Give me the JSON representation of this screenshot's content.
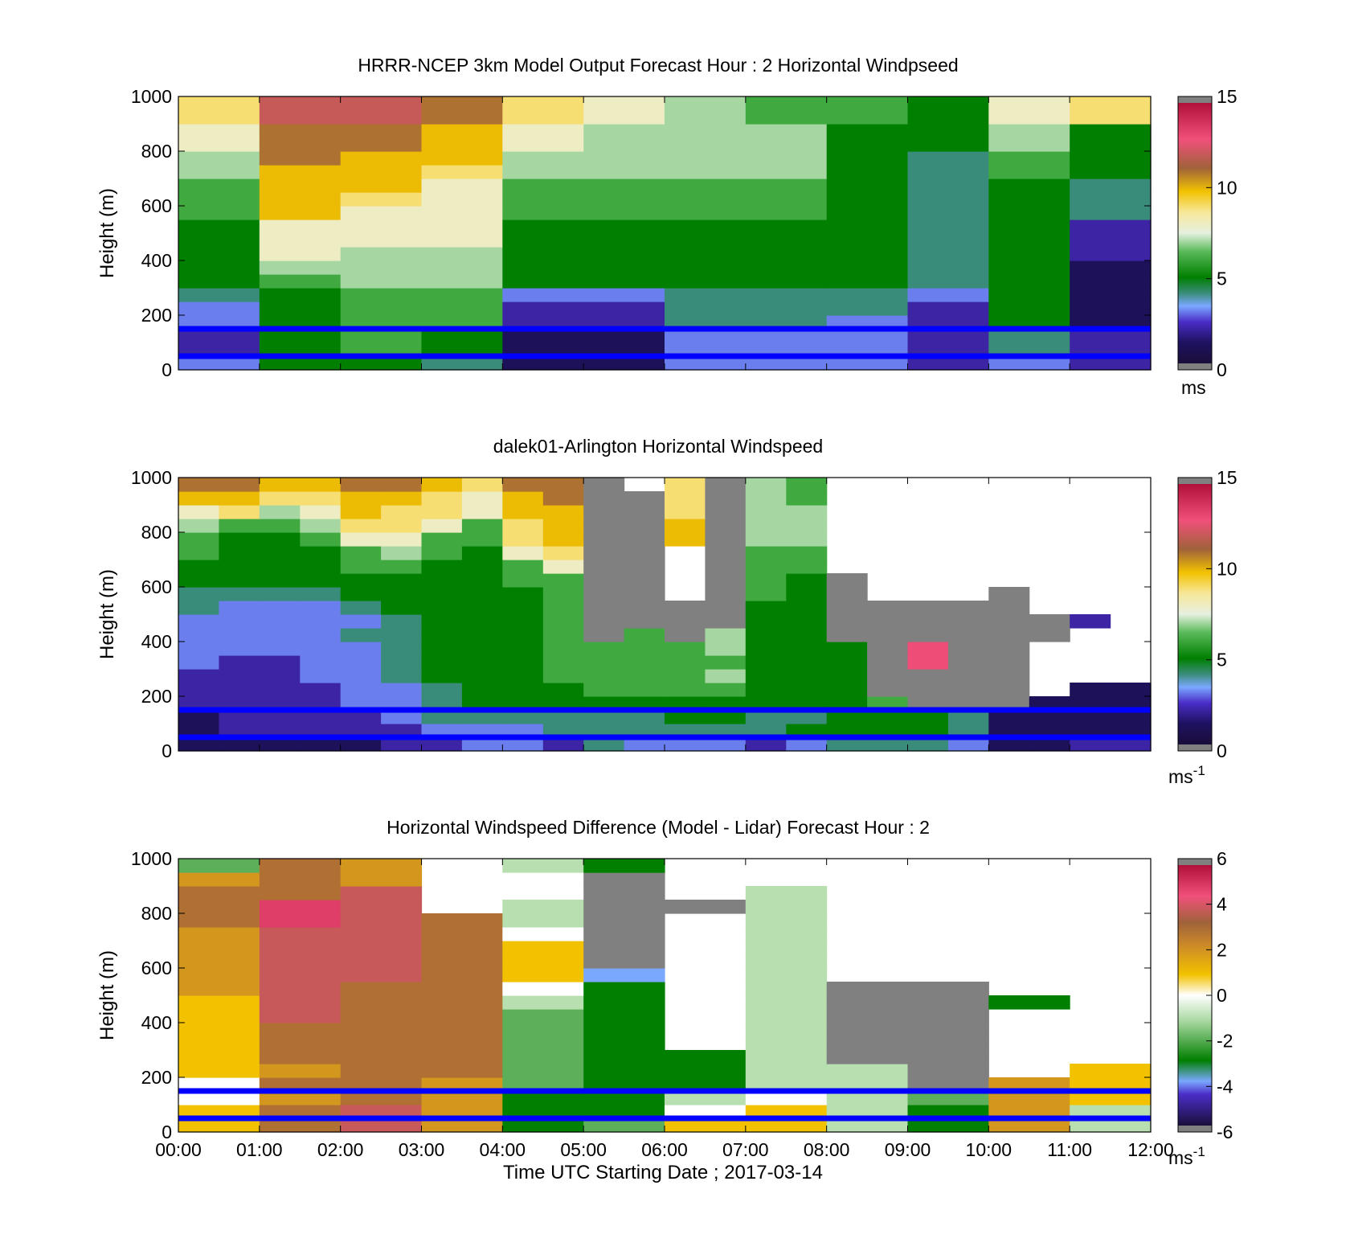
{
  "figure": {
    "xlabel": "Time UTC  Starting Date ; 2017-03-14",
    "x_ticks": [
      "00:00",
      "01:00",
      "02:00",
      "03:00",
      "04:00",
      "05:00",
      "06:00",
      "07:00",
      "08:00",
      "09:00",
      "10:00",
      "11:00",
      "12:00"
    ],
    "y_ticks": [
      "0",
      "200",
      "400",
      "600",
      "800",
      "1000"
    ],
    "ylabel": "Height (m)",
    "reference_lines_m": [
      50,
      150
    ],
    "reference_line_color": "#0000ff"
  },
  "chart_data": [
    {
      "type": "heatmap",
      "title": "HRRR-NCEP 3km Model Output   Forecast Hour : 2 Horizontal Windpseed",
      "xlabel": "",
      "ylabel": "Height (m)",
      "xlim": [
        0,
        12
      ],
      "ylim": [
        0,
        1000
      ],
      "colorbar": {
        "min": 0,
        "max": 15,
        "ticks": [
          "0",
          "5",
          "10",
          "15"
        ],
        "unit": "ms"
      },
      "x": [
        0,
        1,
        2,
        3,
        4,
        5,
        6,
        7,
        8,
        9,
        10,
        11
      ],
      "y": [
        25,
        75,
        125,
        175,
        225,
        275,
        325,
        375,
        425,
        475,
        525,
        575,
        625,
        675,
        725,
        775,
        825,
        875,
        925,
        975
      ],
      "values": [
        [
          3,
          5,
          5,
          4,
          1,
          1,
          3,
          3,
          3,
          2,
          3,
          2
        ],
        [
          2,
          5,
          6,
          5,
          1,
          1,
          3,
          3,
          3,
          2,
          4,
          2
        ],
        [
          2,
          5,
          6,
          5,
          1,
          1,
          3,
          3,
          3,
          2,
          4,
          2
        ],
        [
          3,
          5,
          6,
          6,
          2,
          2,
          4,
          4,
          3,
          2,
          5,
          1
        ],
        [
          3,
          5,
          6,
          6,
          2,
          2,
          4,
          4,
          4,
          2,
          5,
          1
        ],
        [
          4,
          5,
          6,
          6,
          3,
          3,
          4,
          4,
          4,
          3,
          5,
          1
        ],
        [
          5,
          6,
          7,
          7,
          5,
          5,
          5,
          5,
          5,
          4,
          5,
          1
        ],
        [
          5,
          7,
          7,
          7,
          5,
          5,
          5,
          5,
          5,
          4,
          5,
          1
        ],
        [
          5,
          8,
          7,
          7,
          5,
          5,
          5,
          5,
          5,
          4,
          5,
          2
        ],
        [
          5,
          8,
          8,
          8,
          5,
          5,
          5,
          5,
          5,
          4,
          5,
          2
        ],
        [
          5,
          8,
          8,
          8,
          5,
          5,
          5,
          5,
          5,
          4,
          5,
          2
        ],
        [
          6,
          10,
          8,
          8,
          6,
          6,
          6,
          6,
          5,
          4,
          5,
          4
        ],
        [
          6,
          10,
          9,
          8,
          6,
          6,
          6,
          6,
          5,
          4,
          5,
          4
        ],
        [
          6,
          10,
          10,
          8,
          6,
          6,
          6,
          6,
          5,
          4,
          5,
          4
        ],
        [
          7,
          10,
          10,
          9,
          7,
          7,
          7,
          7,
          5,
          4,
          6,
          5
        ],
        [
          7,
          11,
          10,
          10,
          7,
          7,
          7,
          7,
          5,
          4,
          6,
          5
        ],
        [
          8,
          11,
          11,
          10,
          8,
          7,
          7,
          7,
          5,
          5,
          7,
          5
        ],
        [
          8,
          11,
          11,
          10,
          8,
          7,
          7,
          7,
          5,
          5,
          7,
          5
        ],
        [
          9,
          12,
          12,
          11,
          9,
          8,
          7,
          6,
          6,
          5,
          8,
          9
        ],
        [
          9,
          12,
          12,
          11,
          9,
          8,
          7,
          6,
          6,
          5,
          8,
          9
        ]
      ]
    },
    {
      "type": "heatmap",
      "title": "dalek01-Arlington  Horizontal Windspeed",
      "xlabel": "",
      "ylabel": "Height (m)",
      "xlim": [
        0,
        12
      ],
      "ylim": [
        0,
        1000
      ],
      "colorbar": {
        "min": 0,
        "max": 15,
        "ticks": [
          "0",
          "5",
          "10",
          "15"
        ],
        "unit": "ms-1"
      },
      "x": [
        0.25,
        0.75,
        1.25,
        1.75,
        2.25,
        2.75,
        3.25,
        3.75,
        4.25,
        4.75,
        5.25,
        5.75,
        6.25,
        6.75,
        7.25,
        7.75,
        8.25,
        8.75,
        9.25,
        9.75,
        10.25,
        10.75,
        11.25,
        11.75
      ],
      "y": [
        25,
        75,
        125,
        175,
        225,
        275,
        325,
        375,
        425,
        475,
        525,
        575,
        625,
        675,
        725,
        775,
        825,
        875,
        925,
        975
      ],
      "values": [
        [
          1,
          1,
          1,
          1,
          1,
          2,
          2,
          3,
          3,
          2,
          4,
          3,
          3,
          3,
          2,
          3,
          4,
          4,
          4,
          3,
          1,
          1,
          2,
          2
        ],
        [
          1,
          2,
          2,
          2,
          2,
          2,
          3,
          3,
          3,
          4,
          4,
          4,
          4,
          4,
          4,
          5,
          5,
          5,
          5,
          4,
          1,
          1,
          1,
          1
        ],
        [
          1,
          2,
          2,
          2,
          2,
          3,
          4,
          4,
          4,
          4,
          4,
          4,
          5,
          5,
          4,
          4,
          5,
          5,
          5,
          4,
          1,
          1,
          1,
          1
        ],
        [
          2,
          2,
          2,
          2,
          3,
          3,
          4,
          5,
          5,
          5,
          5,
          5,
          5,
          5,
          5,
          5,
          5,
          6,
          -1,
          -1,
          -1,
          1,
          1,
          1
        ],
        [
          2,
          2,
          2,
          2,
          3,
          3,
          4,
          5,
          5,
          5,
          6,
          6,
          6,
          6,
          5,
          5,
          5,
          -1,
          -1,
          -1,
          -1,
          null,
          1,
          1
        ],
        [
          2,
          2,
          2,
          3,
          3,
          4,
          5,
          5,
          5,
          6,
          6,
          6,
          6,
          7,
          5,
          5,
          5,
          -1,
          -1,
          -1,
          -1,
          null,
          null,
          null
        ],
        [
          3,
          2,
          2,
          3,
          3,
          4,
          5,
          5,
          5,
          6,
          6,
          6,
          6,
          6,
          5,
          5,
          5,
          -1,
          13,
          -1,
          -1,
          null,
          null,
          null
        ],
        [
          3,
          3,
          3,
          3,
          3,
          4,
          5,
          5,
          5,
          6,
          6,
          6,
          6,
          7,
          5,
          5,
          5,
          -1,
          13,
          -1,
          -1,
          null,
          null,
          null
        ],
        [
          3,
          3,
          3,
          3,
          4,
          4,
          5,
          5,
          5,
          6,
          -1,
          6,
          -1,
          7,
          5,
          5,
          -1,
          -1,
          -1,
          -1,
          -1,
          -1,
          null,
          null
        ],
        [
          3,
          3,
          3,
          3,
          3,
          4,
          5,
          5,
          5,
          6,
          -1,
          -1,
          -1,
          -1,
          5,
          5,
          -1,
          -1,
          -1,
          -1,
          -1,
          -1,
          2,
          null
        ],
        [
          4,
          3,
          3,
          3,
          4,
          5,
          5,
          5,
          5,
          6,
          -1,
          -1,
          -1,
          -1,
          5,
          5,
          -1,
          -1,
          -1,
          -1,
          -1,
          null,
          null,
          null
        ],
        [
          4,
          4,
          4,
          4,
          5,
          5,
          5,
          5,
          5,
          6,
          -1,
          -1,
          null,
          -1,
          6,
          5,
          -1,
          null,
          null,
          null,
          -1,
          null,
          null,
          null
        ],
        [
          5,
          5,
          5,
          5,
          5,
          5,
          5,
          5,
          6,
          6,
          -1,
          -1,
          null,
          -1,
          6,
          5,
          -1,
          null,
          null,
          null,
          null,
          null,
          null,
          null
        ],
        [
          5,
          5,
          5,
          5,
          6,
          6,
          5,
          5,
          6,
          8,
          -1,
          -1,
          null,
          -1,
          6,
          6,
          null,
          null,
          null,
          null,
          null,
          null,
          null,
          null
        ],
        [
          6,
          5,
          5,
          5,
          6,
          7,
          6,
          5,
          8,
          9,
          -1,
          -1,
          null,
          -1,
          6,
          6,
          null,
          null,
          null,
          null,
          null,
          null,
          null,
          null
        ],
        [
          6,
          5,
          5,
          6,
          8,
          8,
          6,
          6,
          9,
          10,
          -1,
          -1,
          10,
          -1,
          7,
          7,
          null,
          null,
          null,
          null,
          null,
          null,
          null,
          null
        ],
        [
          7,
          6,
          6,
          7,
          9,
          9,
          8,
          6,
          9,
          10,
          -1,
          -1,
          10,
          -1,
          7,
          7,
          null,
          null,
          null,
          null,
          null,
          null,
          null,
          null
        ],
        [
          8,
          9,
          7,
          8,
          10,
          9,
          9,
          8,
          10,
          10,
          -1,
          -1,
          9,
          -1,
          7,
          7,
          null,
          null,
          null,
          null,
          null,
          null,
          null,
          null
        ],
        [
          10,
          10,
          9,
          9,
          10,
          10,
          9,
          8,
          10,
          11,
          -1,
          -1,
          9,
          -1,
          7,
          6,
          null,
          null,
          null,
          null,
          null,
          null,
          null,
          null
        ],
        [
          11,
          11,
          10,
          10,
          11,
          11,
          10,
          9,
          11,
          11,
          -1,
          null,
          9,
          -1,
          7,
          6,
          null,
          null,
          null,
          null,
          null,
          null,
          null,
          null
        ]
      ]
    },
    {
      "type": "heatmap",
      "title": "Horizontal Windspeed Difference (Model - Lidar) Forecast Hour : 2",
      "xlabel": "Time UTC  Starting Date ; 2017-03-14",
      "ylabel": "Height (m)",
      "xlim": [
        0,
        12
      ],
      "ylim": [
        0,
        1000
      ],
      "colorbar": {
        "min": -6,
        "max": 6,
        "ticks": [
          "-6",
          "-4",
          "-2",
          "0",
          "2",
          "4",
          "6"
        ],
        "unit": "ms-1"
      },
      "x": [
        0,
        1,
        2,
        3,
        4,
        5,
        6,
        7,
        8,
        9,
        10,
        11
      ],
      "y": [
        25,
        75,
        125,
        175,
        225,
        275,
        325,
        375,
        425,
        475,
        525,
        575,
        625,
        675,
        725,
        775,
        825,
        875,
        925,
        975
      ],
      "values": [
        [
          1,
          3,
          4,
          2,
          -3,
          -2,
          1,
          1,
          -1,
          -3,
          2,
          -1
        ],
        [
          1,
          3,
          4,
          2,
          -3,
          -3,
          0,
          1,
          -1,
          -3,
          2,
          -1
        ],
        [
          0,
          2,
          3,
          2,
          -3,
          -3,
          -1,
          0,
          -1,
          -2,
          2,
          1
        ],
        [
          0,
          3,
          3,
          2,
          -2,
          -3,
          -3,
          -1,
          -1,
          -7,
          2,
          1
        ],
        [
          1,
          2,
          3,
          3,
          -2,
          -3,
          -3,
          -1,
          -1,
          -7,
          null,
          1
        ],
        [
          1,
          3,
          3,
          3,
          -2,
          -3,
          -3,
          -1,
          -7,
          -7,
          null,
          null
        ],
        [
          1,
          3,
          3,
          3,
          -2,
          -3,
          null,
          -1,
          -7,
          -7,
          null,
          null
        ],
        [
          1,
          3,
          3,
          3,
          -2,
          -3,
          null,
          -1,
          -7,
          -7,
          null,
          null
        ],
        [
          1,
          4,
          3,
          3,
          -2,
          -3,
          null,
          -1,
          -7,
          -7,
          null,
          null
        ],
        [
          1,
          4,
          3,
          3,
          -1,
          -3,
          null,
          -1,
          -7,
          -7,
          -3,
          null
        ],
        [
          2,
          4,
          3,
          3,
          0,
          -3,
          null,
          -1,
          -7,
          -7,
          null,
          null
        ],
        [
          2,
          4,
          4,
          3,
          1,
          -4,
          null,
          -1,
          null,
          null,
          null,
          null
        ],
        [
          2,
          4,
          4,
          3,
          1,
          -7,
          null,
          -1,
          null,
          null,
          null,
          null
        ],
        [
          2,
          4,
          4,
          3,
          1,
          -7,
          null,
          -1,
          null,
          null,
          null,
          null
        ],
        [
          2,
          4,
          4,
          3,
          0,
          -7,
          null,
          -1,
          null,
          null,
          null,
          null
        ],
        [
          3,
          5,
          4,
          3,
          -1,
          -7,
          null,
          -1,
          null,
          null,
          null,
          null
        ],
        [
          3,
          5,
          4,
          null,
          -1,
          -7,
          -7,
          -1,
          null,
          null,
          null,
          null
        ],
        [
          3,
          3,
          4,
          null,
          null,
          -7,
          null,
          -1,
          null,
          null,
          null,
          null
        ],
        [
          2,
          3,
          2,
          null,
          null,
          -7,
          null,
          null,
          null,
          null,
          null,
          null
        ],
        [
          -2,
          3,
          2,
          null,
          -1,
          -3,
          null,
          null,
          null,
          null,
          null,
          null
        ]
      ]
    }
  ]
}
